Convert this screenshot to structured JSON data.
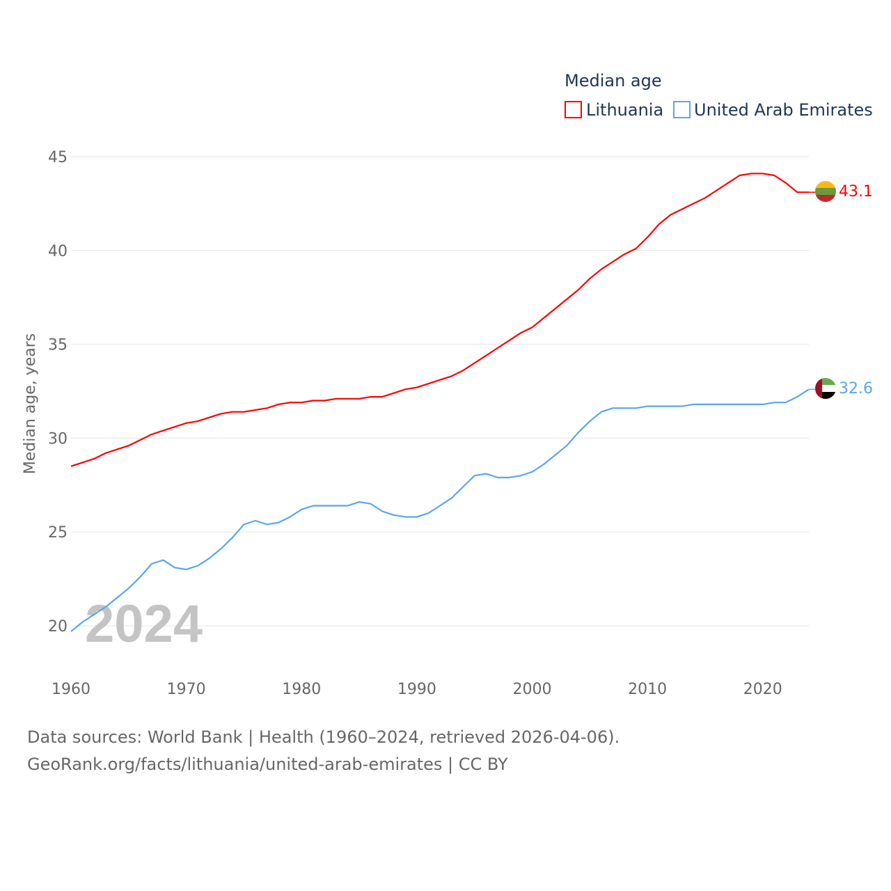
{
  "chart_data": {
    "type": "line",
    "legend_title": "Median age",
    "ylabel": "Median age, years",
    "xlabel": "",
    "year_watermark": "2024",
    "xlim": [
      1960,
      2024
    ],
    "ylim": [
      20,
      45
    ],
    "x_ticks": [
      "1960",
      "1970",
      "1980",
      "1990",
      "2000",
      "2010",
      "2020"
    ],
    "y_ticks": [
      "20",
      "25",
      "30",
      "35",
      "40",
      "45"
    ],
    "grid": true,
    "legend_position": "top-right",
    "x": [
      1960,
      1961,
      1962,
      1963,
      1964,
      1965,
      1966,
      1967,
      1968,
      1969,
      1970,
      1971,
      1972,
      1973,
      1974,
      1975,
      1976,
      1977,
      1978,
      1979,
      1980,
      1981,
      1982,
      1983,
      1984,
      1985,
      1986,
      1987,
      1988,
      1989,
      1990,
      1991,
      1992,
      1993,
      1994,
      1995,
      1996,
      1997,
      1998,
      1999,
      2000,
      2001,
      2002,
      2003,
      2004,
      2005,
      2006,
      2007,
      2008,
      2009,
      2010,
      2011,
      2012,
      2013,
      2014,
      2015,
      2016,
      2017,
      2018,
      2019,
      2020,
      2021,
      2022,
      2023,
      2024
    ],
    "series": [
      {
        "name": "Lithuania",
        "color": "#ff0000",
        "end_label": "43.1",
        "values": [
          28.5,
          28.7,
          28.9,
          29.2,
          29.4,
          29.6,
          29.9,
          30.2,
          30.4,
          30.6,
          30.8,
          30.9,
          31.1,
          31.3,
          31.4,
          31.4,
          31.5,
          31.6,
          31.8,
          31.9,
          31.9,
          32.0,
          32.0,
          32.1,
          32.1,
          32.1,
          32.2,
          32.2,
          32.4,
          32.6,
          32.7,
          32.9,
          33.1,
          33.3,
          33.6,
          34.0,
          34.4,
          34.8,
          35.2,
          35.6,
          35.9,
          36.4,
          36.9,
          37.4,
          37.9,
          38.5,
          39.0,
          39.4,
          39.8,
          40.1,
          40.7,
          41.4,
          41.9,
          42.2,
          42.5,
          42.8,
          43.2,
          43.6,
          44.0,
          44.1,
          44.1,
          44.0,
          43.6,
          43.1,
          43.1
        ]
      },
      {
        "name": "United Arab Emirates",
        "color": "#5aa5ef",
        "end_label": "32.6",
        "values": [
          19.7,
          20.2,
          20.6,
          21.0,
          21.5,
          22.0,
          22.6,
          23.3,
          23.5,
          23.1,
          23.0,
          23.2,
          23.6,
          24.1,
          24.7,
          25.4,
          25.6,
          25.4,
          25.5,
          25.8,
          26.2,
          26.4,
          26.4,
          26.4,
          26.4,
          26.6,
          26.5,
          26.1,
          25.9,
          25.8,
          25.8,
          26.0,
          26.4,
          26.8,
          27.4,
          28.0,
          28.1,
          27.9,
          27.9,
          28.0,
          28.2,
          28.6,
          29.1,
          29.6,
          30.3,
          30.9,
          31.4,
          31.6,
          31.6,
          31.6,
          31.7,
          31.7,
          31.7,
          31.7,
          31.8,
          31.8,
          31.8,
          31.8,
          31.8,
          31.8,
          31.8,
          31.9,
          31.9,
          32.2,
          32.6
        ]
      }
    ]
  },
  "footer": {
    "line1": "Data sources: World Bank | Health (1960–2024, retrieved 2026-04-06).",
    "line2": "GeoRank.org/facts/lithuania/united-arab-emirates | CC BY"
  }
}
